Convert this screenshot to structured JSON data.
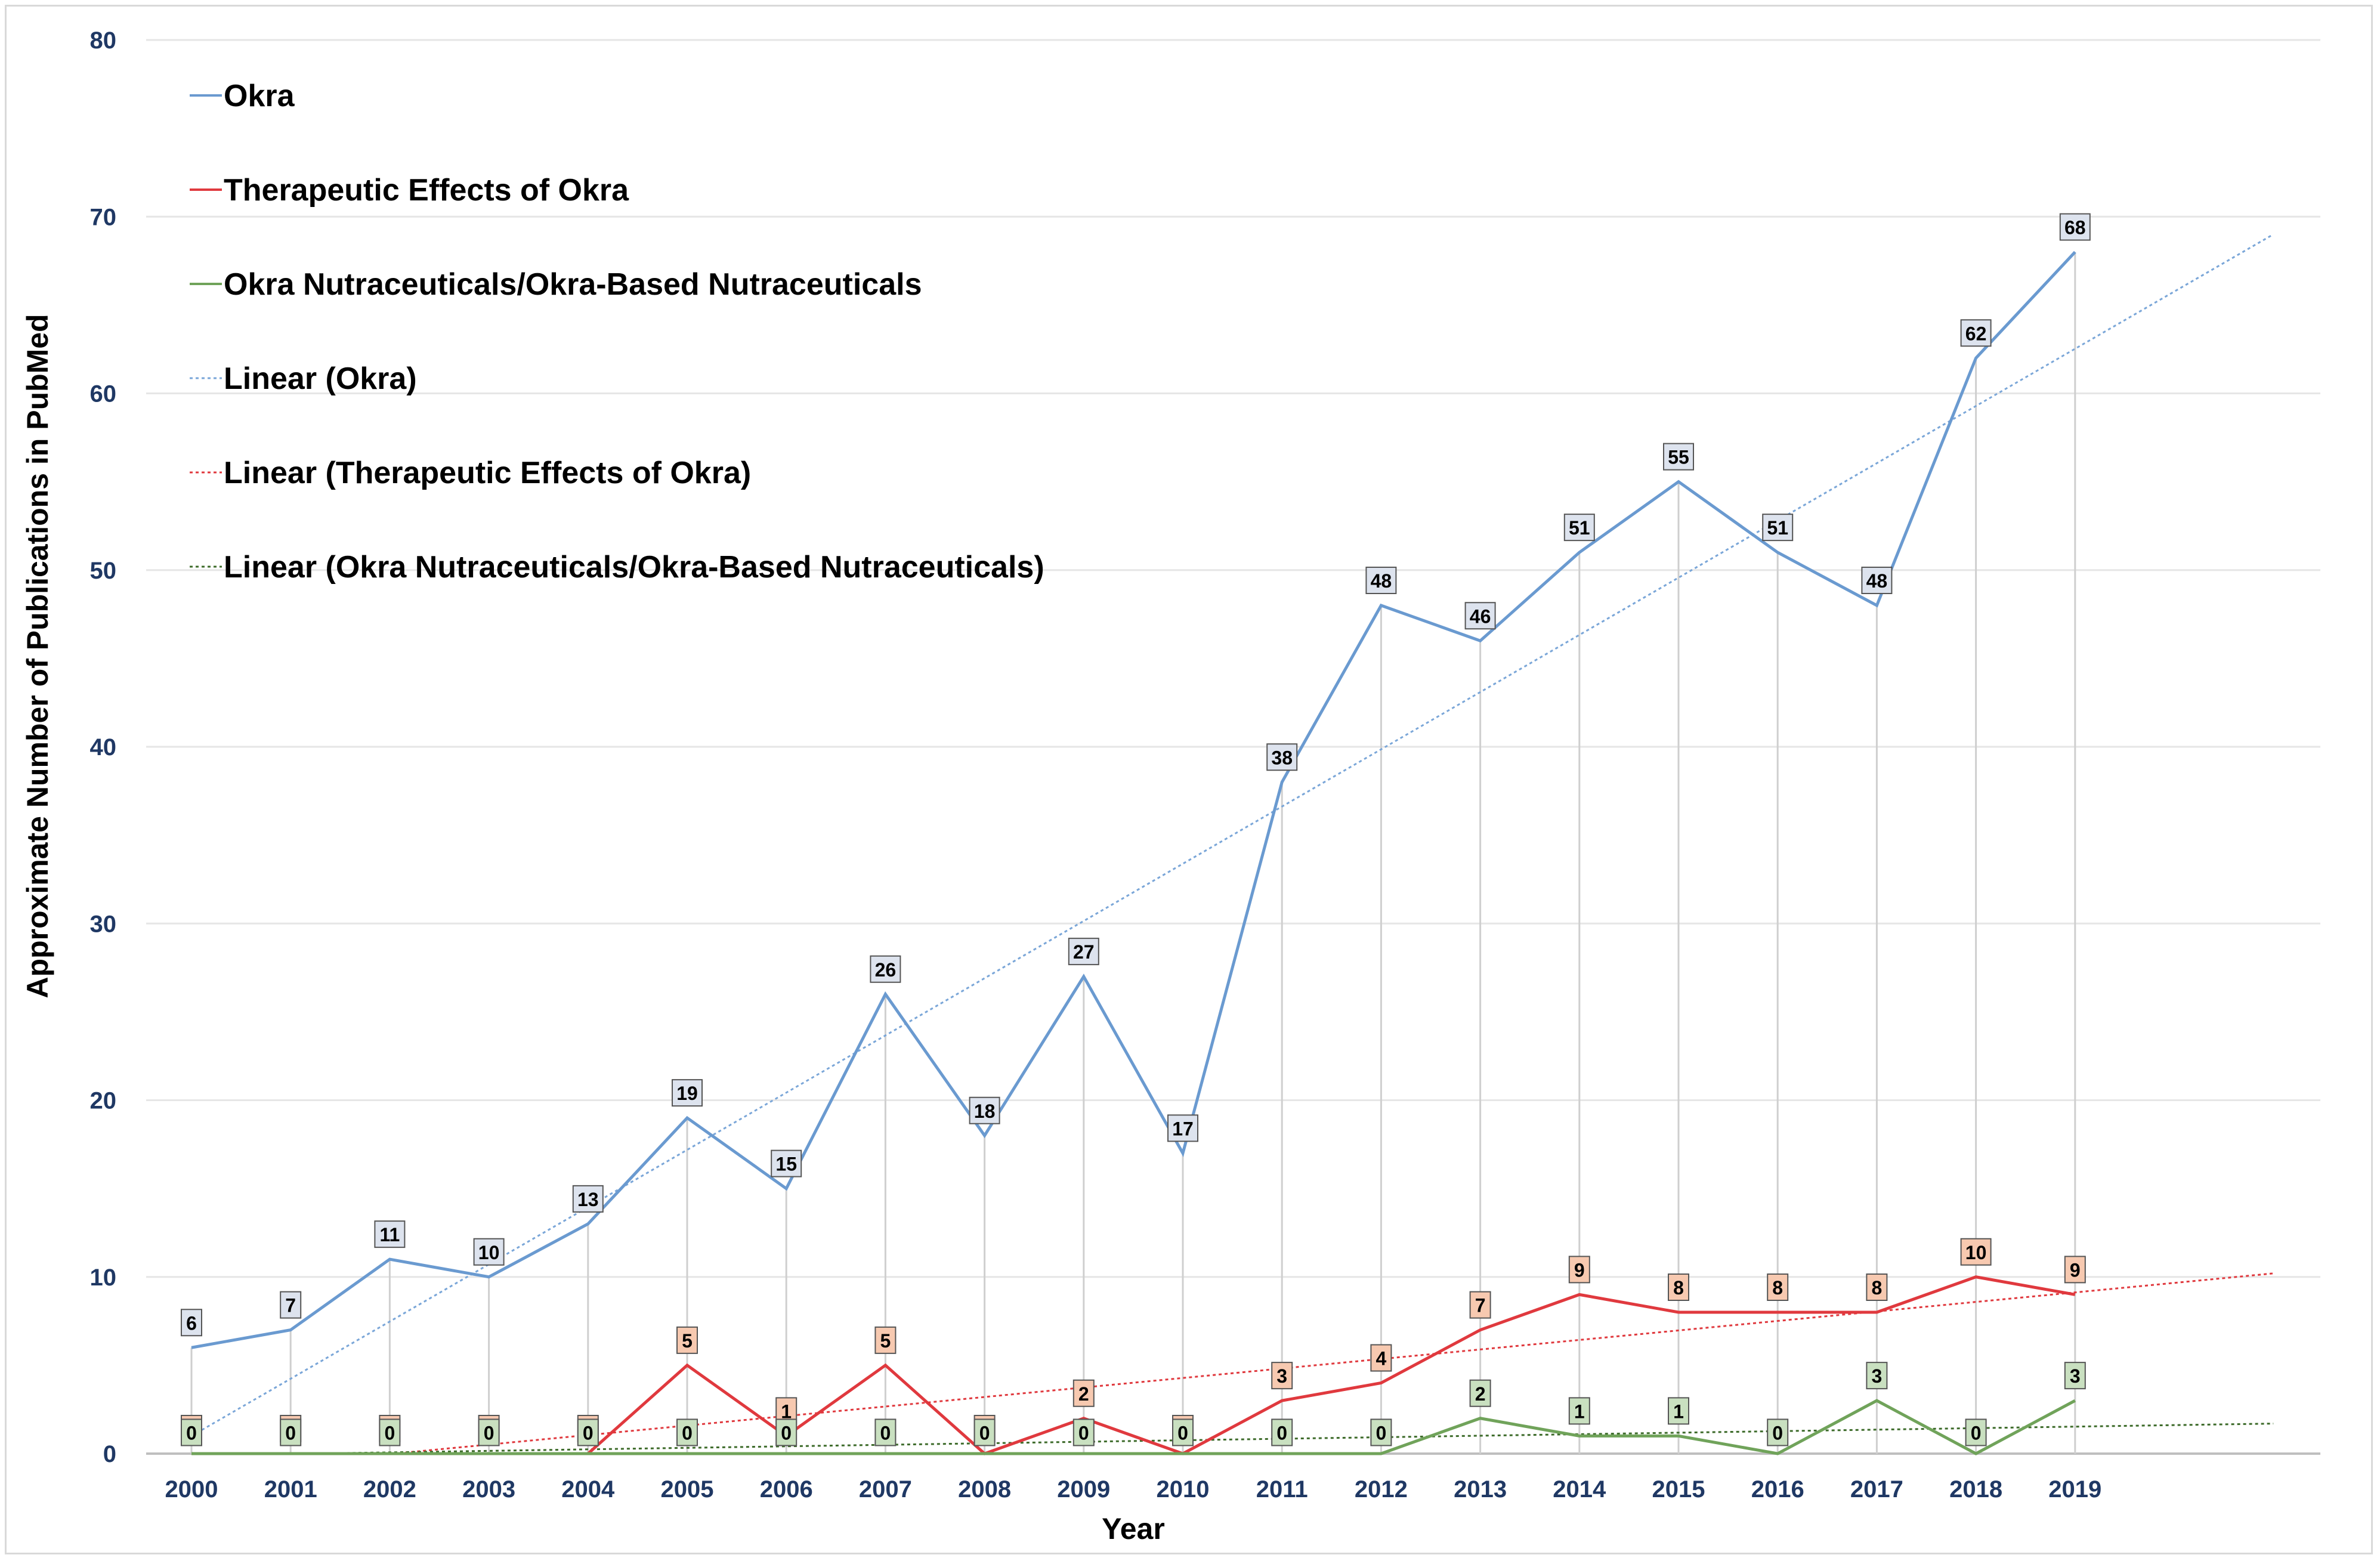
{
  "chart_data": {
    "type": "line",
    "xlabel": "Year",
    "ylabel": "Approximate Number of Publications in PubMed",
    "ylim": [
      0,
      80
    ],
    "ytick_step": 10,
    "grid": "horizontal",
    "legend_position": "top-left",
    "categories": [
      "2000",
      "2001",
      "2002",
      "2003",
      "2004",
      "2005",
      "2006",
      "2007",
      "2008",
      "2009",
      "2010",
      "2011",
      "2012",
      "2013",
      "2014",
      "2015",
      "2016",
      "2017",
      "2018",
      "2019"
    ],
    "series": [
      {
        "name": "Okra",
        "color": "#6a9ad0",
        "label_fill": "#dde3ee",
        "values": [
          6,
          7,
          11,
          10,
          13,
          19,
          15,
          26,
          18,
          27,
          17,
          38,
          48,
          46,
          51,
          55,
          51,
          48,
          62,
          68
        ],
        "trend": {
          "name": "Linear (Okra)",
          "color": "#7aa6d8",
          "y_start": 1,
          "y_end": 69,
          "x_end_index": 21
        }
      },
      {
        "name": "Therapeutic Effects of Okra",
        "color": "#e0393e",
        "label_fill": "#f7c9b0",
        "values": [
          0,
          0,
          0,
          0,
          0,
          5,
          1,
          5,
          0,
          2,
          0,
          3,
          4,
          7,
          9,
          8,
          8,
          8,
          10,
          9
        ],
        "trend": {
          "name": "Linear (Therapeutic Effects of Okra)",
          "color": "#e0393e",
          "y_start": -1.1,
          "y_end": 10.2,
          "x_end_index": 21
        }
      },
      {
        "name": "Okra Nutraceuticals/Okra-Based Nutraceuticals",
        "color": "#70a35a",
        "label_fill": "#c9e0c0",
        "values": [
          0,
          0,
          0,
          0,
          0,
          0,
          0,
          0,
          0,
          0,
          0,
          0,
          0,
          2,
          1,
          1,
          0,
          3,
          0,
          3
        ],
        "trend": {
          "name": "Linear (Okra Nutraceuticals/Okra-Based Nutraceuticals)",
          "color": "#3d6b2a",
          "y_start": -0.1,
          "y_end": 1.7,
          "x_end_index": 21
        }
      }
    ]
  }
}
